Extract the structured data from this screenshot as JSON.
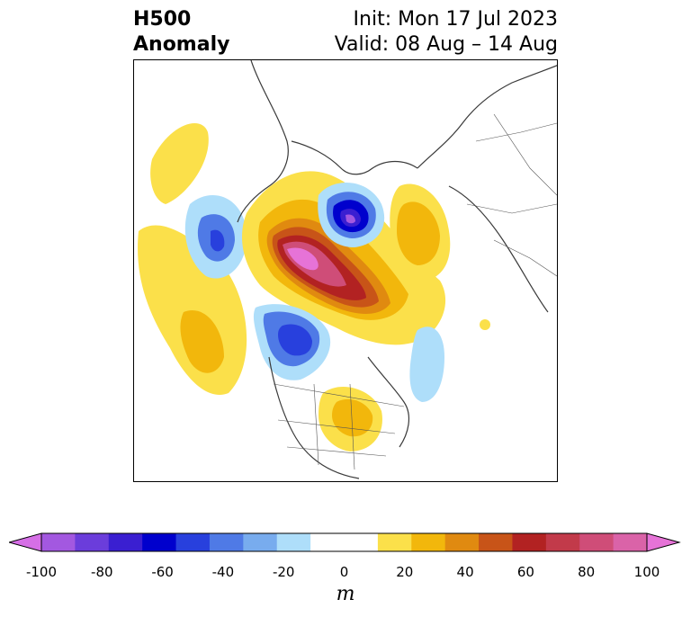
{
  "title": {
    "left_line1": "H500",
    "left_line2": "Anomaly",
    "right_line1": "Init: Mon 17 Jul 2023",
    "right_line2": "Valid: 08 Aug – 14 Aug"
  },
  "map": {
    "projection": "polar-stereographic",
    "region": "Northern Hemisphere / North America"
  },
  "colorbar": {
    "unit": "m",
    "min": -100,
    "max": 100,
    "step": 10,
    "extend": "both",
    "tick_labels": [
      "-100",
      "-80",
      "-60",
      "-40",
      "-20",
      "0",
      "20",
      "40",
      "60",
      "80",
      "100"
    ],
    "colors": [
      "#d66fe6",
      "#a358e0",
      "#6b3ddb",
      "#3a1fd1",
      "#0000cd",
      "#2840dd",
      "#4f7ae6",
      "#78acee",
      "#aedefa",
      "#ffffff",
      "#ffffff",
      "#fbe04a",
      "#f2b70c",
      "#e08a10",
      "#c85418",
      "#b22222",
      "#c23a4a",
      "#cf4d78",
      "#da63a8",
      "#e673d7"
    ]
  },
  "anomalies": [
    {
      "sign": "positive",
      "level": 20,
      "location": "Alaska / North Pacific"
    },
    {
      "sign": "positive",
      "level": 80,
      "location": "Greenland / Canadian Arctic"
    },
    {
      "sign": "positive",
      "level": 20,
      "location": "Northern Europe / Scandinavia"
    },
    {
      "sign": "positive",
      "level": 20,
      "location": "Eastern United States"
    },
    {
      "sign": "negative",
      "level": -70,
      "location": "Western Russia / Barents Sea"
    },
    {
      "sign": "negative",
      "level": -50,
      "location": "Western North Atlantic"
    },
    {
      "sign": "negative",
      "level": -40,
      "location": "North Atlantic (west)"
    },
    {
      "sign": "negative",
      "level": -20,
      "location": "Central Pacific"
    }
  ]
}
